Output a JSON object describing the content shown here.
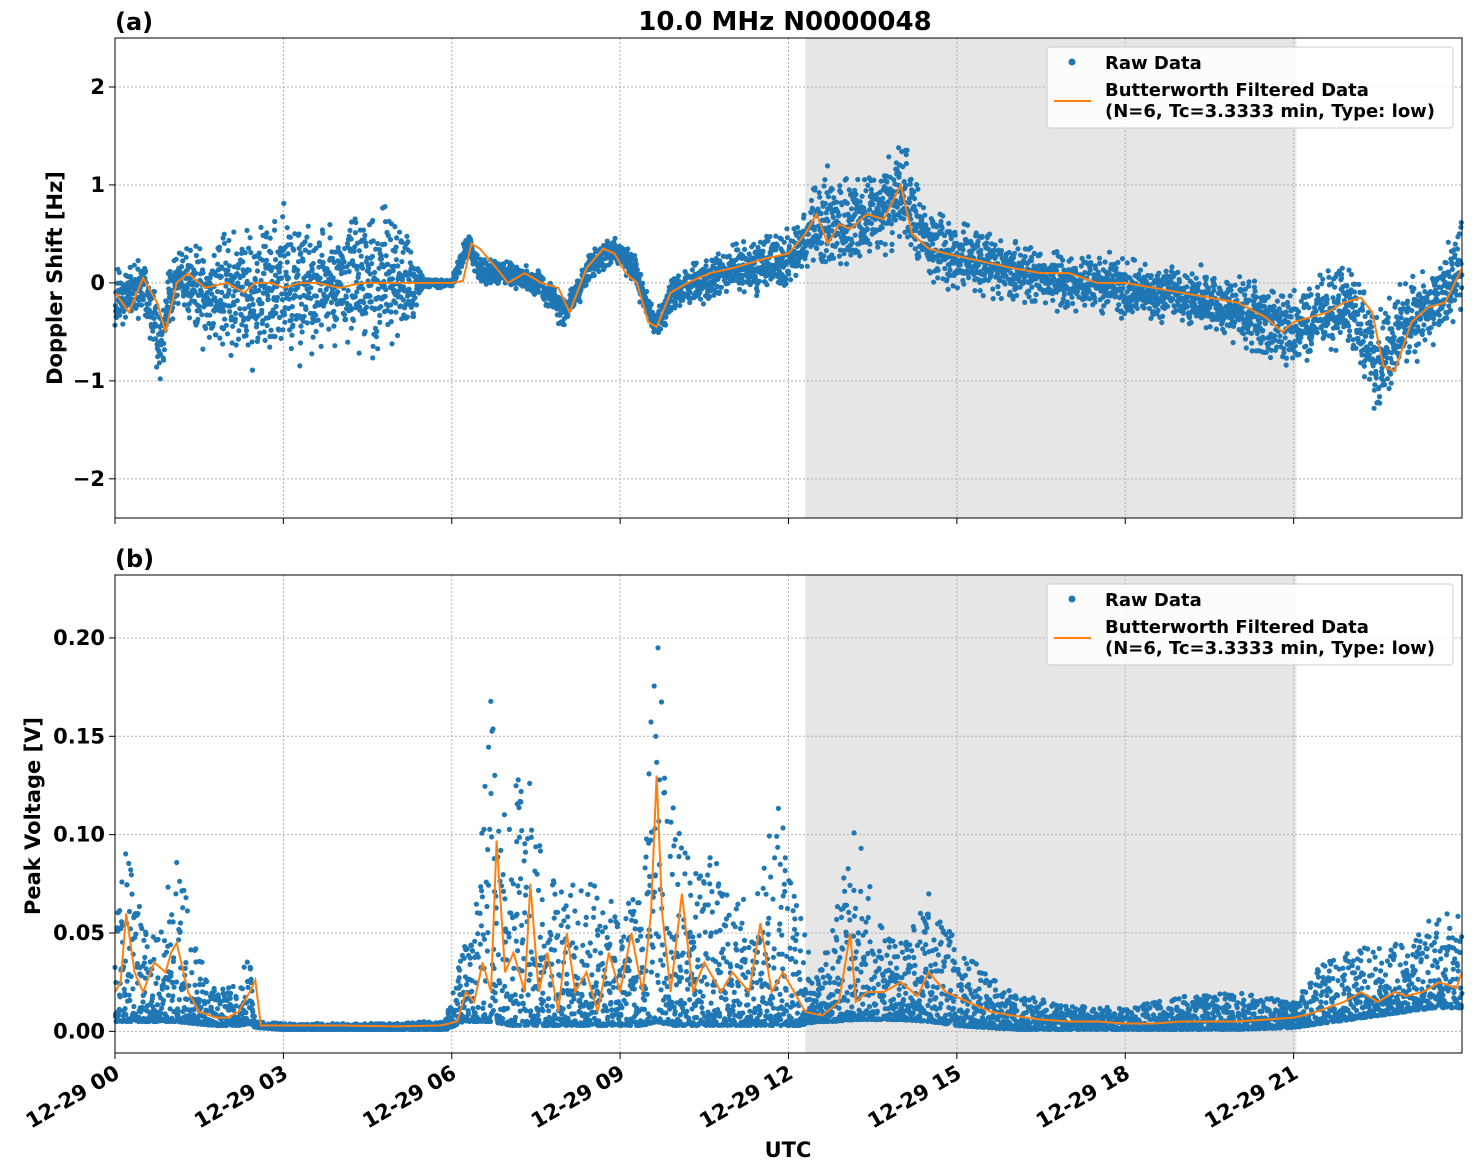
{
  "figure": {
    "title": "10.0 MHz N0000048",
    "xlabel": "UTC",
    "x_ticks": [
      "12-29 00",
      "12-29 03",
      "12-29 06",
      "12-29 09",
      "12-29 12",
      "12-29 15",
      "12-29 18",
      "12-29 21"
    ],
    "colors": {
      "raw": "#1f77b4",
      "filtered": "#ff7f0e",
      "shade": "#e6e6e6",
      "grid": "#b0b0b0"
    }
  },
  "legend": {
    "raw_label": "Raw Data",
    "filtered_label_line1": "Butterworth Filtered Data",
    "filtered_label_line2": "(N=6, Tc=3.3333 min, Type: low)"
  },
  "chart_data": [
    {
      "type": "scatter",
      "panel_label": "(a)",
      "ylabel": "Doppler Shift [Hz]",
      "xlim_hours": [
        0,
        24
      ],
      "ylim": [
        -2.4,
        2.5
      ],
      "y_ticks": [
        "2",
        "1",
        "0",
        "−1",
        "−2"
      ],
      "y_tick_values": [
        2,
        1,
        0,
        -1,
        -2
      ],
      "grid": true,
      "legend_position": "top-right",
      "shaded_interval_hours": [
        12.3,
        21.05
      ],
      "series": [
        {
          "name": "Raw Data",
          "x_hours": [
            0,
            0.5,
            0.8,
            1.1,
            1.5,
            2.0,
            2.5,
            3.0,
            3.5,
            4.0,
            4.5,
            5.2,
            5.5,
            6.0,
            6.3,
            6.5,
            7.0,
            7.5,
            8.0,
            8.5,
            8.9,
            9.3,
            9.6,
            10.0,
            10.5,
            11.0,
            11.5,
            12.0,
            12.3,
            12.6,
            13.0,
            13.5,
            14.0,
            14.5,
            15.0,
            15.5,
            16.0,
            16.5,
            17.0,
            17.5,
            18.0,
            18.5,
            19.0,
            19.5,
            20.0,
            20.5,
            21.0,
            21.5,
            22.0,
            22.5,
            23.0,
            23.5,
            24.0
          ],
          "y_center": [
            -0.2,
            0.0,
            -0.6,
            0.1,
            -0.1,
            -0.1,
            -0.1,
            0.0,
            0.0,
            0.0,
            0.0,
            0.0,
            0.0,
            0.0,
            0.4,
            0.1,
            0.1,
            0.0,
            -0.3,
            0.2,
            0.35,
            0.1,
            -0.45,
            -0.1,
            0.0,
            0.15,
            0.2,
            0.25,
            0.4,
            0.7,
            0.6,
            0.7,
            0.9,
            0.4,
            0.3,
            0.2,
            0.1,
            0.1,
            0.0,
            0.0,
            -0.05,
            -0.1,
            -0.15,
            -0.2,
            -0.3,
            -0.4,
            -0.5,
            -0.3,
            -0.25,
            -0.85,
            -0.4,
            -0.25,
            0.2
          ],
          "y_spread": [
            0.4,
            0.3,
            0.45,
            0.3,
            0.5,
            0.65,
            0.75,
            0.75,
            0.75,
            0.7,
            0.7,
            0.7,
            0.05,
            0.05,
            0.15,
            0.15,
            0.15,
            0.15,
            0.2,
            0.15,
            0.15,
            0.2,
            0.15,
            0.2,
            0.25,
            0.25,
            0.3,
            0.3,
            0.35,
            0.6,
            0.5,
            0.5,
            0.55,
            0.4,
            0.35,
            0.35,
            0.35,
            0.3,
            0.3,
            0.3,
            0.3,
            0.3,
            0.3,
            0.35,
            0.35,
            0.4,
            0.4,
            0.4,
            0.45,
            0.55,
            0.45,
            0.4,
            0.45
          ]
        },
        {
          "name": "Butterworth Filtered Data\n(N=6, Tc=3.3333 min, Type: low)",
          "x_hours": [
            0,
            0.25,
            0.5,
            0.75,
            0.9,
            1.1,
            1.3,
            1.6,
            2.0,
            2.3,
            2.5,
            2.8,
            3.0,
            3.3,
            3.6,
            4.0,
            4.4,
            4.8,
            5.2,
            5.5,
            6.0,
            6.2,
            6.35,
            6.5,
            6.8,
            7.0,
            7.3,
            7.6,
            7.9,
            8.1,
            8.4,
            8.7,
            8.9,
            9.1,
            9.3,
            9.5,
            9.65,
            9.9,
            10.2,
            10.6,
            11.0,
            11.3,
            11.6,
            12.0,
            12.3,
            12.5,
            12.7,
            12.9,
            13.1,
            13.4,
            13.7,
            14.0,
            14.2,
            14.5,
            14.8,
            15.2,
            15.6,
            16.0,
            16.5,
            17.0,
            17.5,
            18.0,
            18.5,
            19.0,
            19.5,
            20.0,
            20.5,
            20.8,
            21.0,
            21.3,
            21.6,
            21.9,
            22.2,
            22.4,
            22.6,
            22.8,
            23.1,
            23.4,
            23.7,
            24.0
          ],
          "y": [
            -0.1,
            -0.3,
            0.05,
            -0.2,
            -0.5,
            0.0,
            0.1,
            -0.05,
            0.0,
            -0.1,
            0.0,
            0.0,
            -0.05,
            0.0,
            0.0,
            -0.05,
            0.0,
            0.0,
            0.0,
            0.0,
            0.0,
            0.02,
            0.4,
            0.35,
            0.15,
            0.0,
            0.1,
            0.0,
            -0.05,
            -0.3,
            0.15,
            0.35,
            0.3,
            0.1,
            0.0,
            -0.4,
            -0.45,
            -0.1,
            0.0,
            0.1,
            0.15,
            0.2,
            0.25,
            0.3,
            0.5,
            0.7,
            0.4,
            0.6,
            0.55,
            0.7,
            0.65,
            1.0,
            0.5,
            0.35,
            0.3,
            0.25,
            0.2,
            0.15,
            0.1,
            0.1,
            0.0,
            0.0,
            -0.05,
            -0.1,
            -0.15,
            -0.2,
            -0.35,
            -0.5,
            -0.4,
            -0.35,
            -0.3,
            -0.2,
            -0.15,
            -0.3,
            -0.85,
            -0.9,
            -0.4,
            -0.25,
            -0.2,
            0.15
          ]
        }
      ]
    },
    {
      "type": "scatter",
      "panel_label": "(b)",
      "ylabel": "Peak Voltage [V]",
      "xlim_hours": [
        0,
        24
      ],
      "ylim": [
        -0.011,
        0.232
      ],
      "y_ticks": [
        "0.20",
        "0.15",
        "0.10",
        "0.05",
        "0.00"
      ],
      "y_tick_values": [
        0.2,
        0.15,
        0.1,
        0.05,
        0.0
      ],
      "grid": true,
      "legend_position": "top-right",
      "shaded_interval_hours": [
        12.3,
        21.05
      ],
      "series": [
        {
          "name": "Raw Data",
          "x_hours": [
            0,
            0.2,
            0.5,
            0.8,
            1.1,
            1.4,
            1.8,
            2.2,
            2.4,
            2.5,
            3.0,
            4.0,
            5.0,
            5.9,
            6.2,
            6.4,
            6.7,
            7.0,
            7.3,
            7.6,
            8.0,
            8.5,
            9.0,
            9.4,
            9.65,
            9.9,
            10.3,
            10.7,
            11.0,
            11.4,
            11.8,
            12.2,
            12.5,
            12.8,
            13.2,
            13.6,
            14.0,
            14.5,
            15.0,
            15.5,
            16.0,
            17.0,
            18.0,
            19.0,
            20.0,
            21.0,
            21.5,
            22.0,
            22.5,
            23.0,
            23.5,
            24.0
          ],
          "y_low": [
            0.005,
            0.005,
            0.005,
            0.005,
            0.005,
            0.004,
            0.003,
            0.003,
            0.004,
            0.002,
            0.001,
            0.001,
            0.001,
            0.001,
            0.005,
            0.005,
            0.005,
            0.003,
            0.003,
            0.003,
            0.003,
            0.003,
            0.003,
            0.003,
            0.005,
            0.003,
            0.003,
            0.003,
            0.003,
            0.003,
            0.003,
            0.003,
            0.005,
            0.005,
            0.006,
            0.006,
            0.006,
            0.005,
            0.003,
            0.002,
            0.001,
            0.001,
            0.001,
            0.001,
            0.001,
            0.002,
            0.004,
            0.006,
            0.008,
            0.01,
            0.012,
            0.012
          ],
          "y_high": [
            0.05,
            0.1,
            0.06,
            0.05,
            0.1,
            0.045,
            0.02,
            0.025,
            0.045,
            0.005,
            0.004,
            0.004,
            0.004,
            0.006,
            0.045,
            0.05,
            0.17,
            0.1,
            0.165,
            0.09,
            0.08,
            0.075,
            0.065,
            0.07,
            0.22,
            0.12,
            0.085,
            0.09,
            0.065,
            0.07,
            0.12,
            0.06,
            0.03,
            0.055,
            0.105,
            0.055,
            0.045,
            0.07,
            0.045,
            0.03,
            0.02,
            0.013,
            0.012,
            0.018,
            0.02,
            0.015,
            0.035,
            0.04,
            0.045,
            0.045,
            0.06,
            0.06
          ]
        },
        {
          "name": "Butterworth Filtered Data\n(N=6, Tc=3.3333 min, Type: low)",
          "x_hours": [
            0,
            0.1,
            0.2,
            0.35,
            0.5,
            0.7,
            0.9,
            1.0,
            1.1,
            1.3,
            1.5,
            1.8,
            2.0,
            2.2,
            2.4,
            2.5,
            2.6,
            3.0,
            4.0,
            5.0,
            5.8,
            6.1,
            6.25,
            6.4,
            6.55,
            6.7,
            6.8,
            6.95,
            7.1,
            7.3,
            7.4,
            7.55,
            7.7,
            7.9,
            8.05,
            8.2,
            8.4,
            8.6,
            8.8,
            9.0,
            9.2,
            9.4,
            9.55,
            9.65,
            9.75,
            9.9,
            10.1,
            10.3,
            10.5,
            10.8,
            11.0,
            11.3,
            11.5,
            11.7,
            11.9,
            12.1,
            12.3,
            12.6,
            12.9,
            13.1,
            13.2,
            13.4,
            13.7,
            14.0,
            14.3,
            14.5,
            14.8,
            15.2,
            15.6,
            16.0,
            16.5,
            17.0,
            17.5,
            18.0,
            18.5,
            19.0,
            19.5,
            20.0,
            20.5,
            21.0,
            21.3,
            21.6,
            21.9,
            22.2,
            22.5,
            22.8,
            23.0,
            23.3,
            23.6,
            23.9,
            24.0
          ],
          "y": [
            0.02,
            0.025,
            0.06,
            0.03,
            0.02,
            0.035,
            0.03,
            0.04,
            0.045,
            0.02,
            0.01,
            0.007,
            0.007,
            0.01,
            0.02,
            0.026,
            0.003,
            0.003,
            0.003,
            0.0025,
            0.003,
            0.005,
            0.02,
            0.015,
            0.035,
            0.02,
            0.097,
            0.03,
            0.04,
            0.02,
            0.075,
            0.02,
            0.04,
            0.01,
            0.05,
            0.02,
            0.03,
            0.01,
            0.04,
            0.02,
            0.05,
            0.02,
            0.06,
            0.13,
            0.06,
            0.02,
            0.07,
            0.02,
            0.035,
            0.02,
            0.03,
            0.02,
            0.055,
            0.02,
            0.03,
            0.02,
            0.01,
            0.008,
            0.015,
            0.05,
            0.015,
            0.02,
            0.02,
            0.025,
            0.018,
            0.03,
            0.02,
            0.015,
            0.01,
            0.008,
            0.006,
            0.005,
            0.005,
            0.004,
            0.004,
            0.005,
            0.005,
            0.005,
            0.006,
            0.007,
            0.009,
            0.012,
            0.015,
            0.02,
            0.015,
            0.02,
            0.018,
            0.02,
            0.025,
            0.022,
            0.03
          ]
        }
      ]
    }
  ]
}
